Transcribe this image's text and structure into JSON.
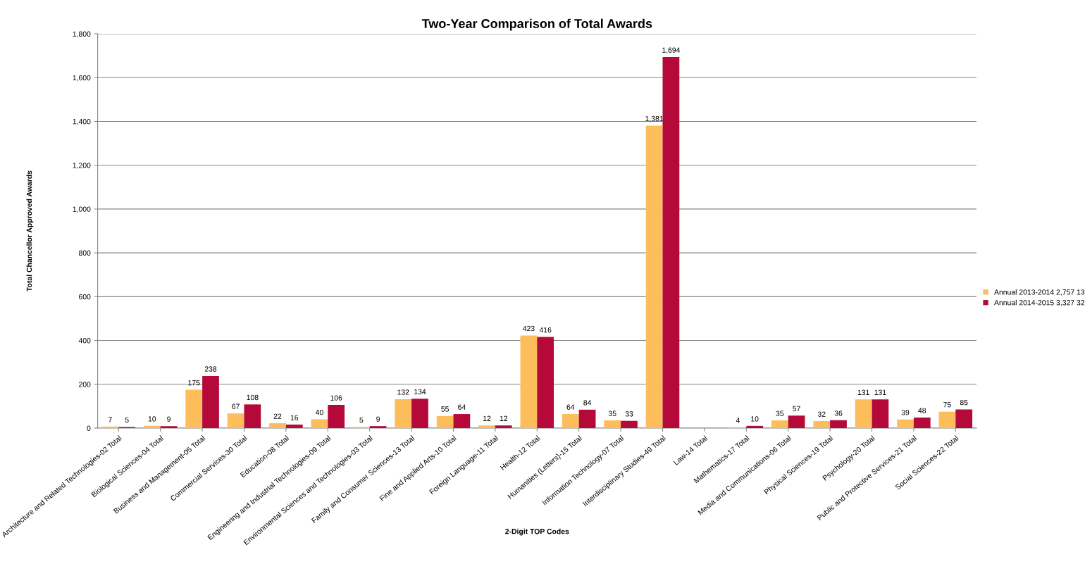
{
  "chart_data": {
    "type": "bar",
    "title": "Two-Year Comparison of Total Awards",
    "xlabel": "2-Digit TOP Codes",
    "ylabel": "Total Chancellor Approved Awards",
    "categories": [
      "Architecture and Related Technologies-02 Total",
      "Biological Sciences-04 Total",
      "Business and Management-05 Total",
      "Commercial Services-30 Total",
      "Education-08 Total",
      "Engineering and Industrial Technologies-09 Total",
      "Environmental Sciences and Technologies-03 Total",
      "Family and Consumer Sciences-13 Total",
      "Fine and Applied Arts-10 Total",
      "Foreign Language-11 Total",
      "Health-12 Total",
      "Humanities (Letters)-15 Total",
      "Information Technology-07 Total",
      "Interdisciplinary Studies-49 Total",
      "Law-14 Total",
      "Mathematics-17 Total",
      "Media and Communications-06 Total",
      "Physical Sciences-19 Total",
      "Psychology-20 Total",
      "Public and Protective Services-21 Total",
      "Social Sciences-22 Total"
    ],
    "series": [
      {
        "name": "Annual 2013-2014 2,757 13",
        "color": "#fdbd5a",
        "values": [
          7,
          10,
          175,
          67,
          22,
          40,
          5,
          132,
          55,
          12,
          423,
          64,
          35,
          1381,
          null,
          4,
          35,
          32,
          131,
          39,
          75
        ],
        "value_labels": [
          "7",
          "10",
          "175",
          "67",
          "22",
          "40",
          "5",
          "132",
          "55",
          "12",
          "423",
          "64",
          "35",
          "1,381",
          null,
          "4",
          "35",
          "32",
          "131",
          "39",
          "75"
        ]
      },
      {
        "name": "Annual 2014-2015 3,327 32",
        "color": "#b5093a",
        "values": [
          5,
          9,
          238,
          108,
          16,
          106,
          9,
          134,
          64,
          12,
          416,
          84,
          33,
          1694,
          null,
          10,
          57,
          36,
          131,
          48,
          85
        ],
        "value_labels": [
          "5",
          "9",
          "238",
          "108",
          "16",
          "106",
          "9",
          "134",
          "64",
          "12",
          "416",
          "84",
          "33",
          "1,694",
          null,
          "10",
          "57",
          "36",
          "131",
          "48",
          "85"
        ]
      }
    ],
    "ylim": [
      0,
      1800
    ],
    "yticks": [
      0,
      200,
      400,
      600,
      800,
      {
        "value": 1000,
        "label": "1,000"
      },
      {
        "value": 1200,
        "label": "1,200"
      },
      {
        "value": 1400,
        "label": "1,400"
      },
      {
        "value": 1600,
        "label": "1,600"
      },
      {
        "value": 1800,
        "label": "1,800"
      }
    ],
    "grid": "y",
    "legend": "right"
  }
}
